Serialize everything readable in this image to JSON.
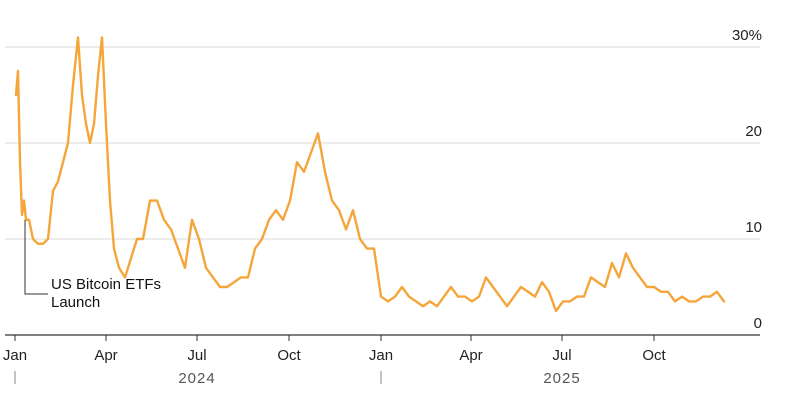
{
  "chart_data": {
    "type": "line",
    "title": "",
    "xlabel": "",
    "ylabel": "",
    "y_unit_label": "30%",
    "ylim": [
      0,
      30
    ],
    "yticks": [
      0,
      10,
      20,
      30
    ],
    "ytick_labels": [
      "0",
      "10",
      "20",
      "30%"
    ],
    "y_axis_position": "right",
    "grid": true,
    "xlim": [
      "2024-01-01",
      "2025-12-31"
    ],
    "xticks": [
      {
        "date": "2024-01-01",
        "label": "Jan"
      },
      {
        "date": "2024-04-01",
        "label": "Apr"
      },
      {
        "date": "2024-07-01",
        "label": "Jul"
      },
      {
        "date": "2024-10-01",
        "label": "Oct"
      },
      {
        "date": "2025-01-01",
        "label": "Jan"
      },
      {
        "date": "2025-04-01",
        "label": "Apr"
      },
      {
        "date": "2025-07-01",
        "label": "Jul"
      },
      {
        "date": "2025-10-01",
        "label": "Oct"
      }
    ],
    "year_labels": [
      {
        "label": "2024",
        "date": "2024-07-01"
      },
      {
        "label": "2025",
        "date": "2025-07-01"
      }
    ],
    "year_separators": [
      "2024-01-01",
      "2025-01-01"
    ],
    "line_color": "#f5a53a",
    "series": [
      {
        "x": [
          "2024-01-02",
          "2024-01-04",
          "2024-01-06",
          "2024-01-08",
          "2024-01-10",
          "2024-01-12",
          "2024-01-15",
          "2024-01-19",
          "2024-01-24",
          "2024-01-29",
          "2024-02-03",
          "2024-02-08",
          "2024-02-13",
          "2024-02-18",
          "2024-02-23",
          "2024-02-28",
          "2024-03-04",
          "2024-03-08",
          "2024-03-12",
          "2024-03-16",
          "2024-03-20",
          "2024-03-24",
          "2024-03-28",
          "2024-04-01",
          "2024-04-05",
          "2024-04-09",
          "2024-04-14",
          "2024-04-20",
          "2024-04-26",
          "2024-05-02",
          "2024-05-08",
          "2024-05-15",
          "2024-05-22",
          "2024-05-29",
          "2024-06-05",
          "2024-06-12",
          "2024-06-19",
          "2024-06-26",
          "2024-07-03",
          "2024-07-10",
          "2024-07-17",
          "2024-07-24",
          "2024-07-31",
          "2024-08-07",
          "2024-08-14",
          "2024-08-21",
          "2024-08-28",
          "2024-09-04",
          "2024-09-11",
          "2024-09-18",
          "2024-09-25",
          "2024-10-02",
          "2024-10-09",
          "2024-10-16",
          "2024-10-23",
          "2024-10-30",
          "2024-11-06",
          "2024-11-13",
          "2024-11-20",
          "2024-11-27",
          "2024-12-04",
          "2024-12-11",
          "2024-12-18",
          "2024-12-25",
          "2025-01-01",
          "2025-01-08",
          "2025-01-15",
          "2025-01-22",
          "2025-01-29",
          "2025-02-05",
          "2025-02-12",
          "2025-02-19",
          "2025-02-26",
          "2025-03-05",
          "2025-03-12",
          "2025-03-19",
          "2025-03-26",
          "2025-04-02",
          "2025-04-09",
          "2025-04-16",
          "2025-04-23",
          "2025-04-30",
          "2025-05-07",
          "2025-05-14",
          "2025-05-21",
          "2025-05-28",
          "2025-06-04",
          "2025-06-11",
          "2025-06-18",
          "2025-06-25",
          "2025-07-02",
          "2025-07-09",
          "2025-07-16",
          "2025-07-23",
          "2025-07-30",
          "2025-08-06",
          "2025-08-13",
          "2025-08-20",
          "2025-08-27",
          "2025-09-03",
          "2025-09-10",
          "2025-09-17",
          "2025-09-24",
          "2025-10-01",
          "2025-10-08",
          "2025-10-15",
          "2025-10-22",
          "2025-10-29",
          "2025-11-05",
          "2025-11-12",
          "2025-11-19",
          "2025-11-26",
          "2025-12-03",
          "2025-12-10"
        ],
        "values": [
          25,
          27.5,
          18,
          12.5,
          14,
          12,
          12,
          10,
          9.5,
          9.5,
          10,
          15,
          16,
          18,
          20,
          26,
          31,
          25,
          22,
          20,
          22,
          27,
          31,
          22,
          14,
          9,
          7,
          6,
          8,
          10,
          10,
          14,
          14,
          12,
          11,
          9,
          7,
          12,
          10,
          7,
          6,
          5,
          5,
          5.5,
          6,
          6,
          9,
          10,
          12,
          13,
          12,
          14,
          18,
          17,
          19,
          21,
          17,
          14,
          13,
          11,
          13,
          10,
          9,
          9,
          4,
          3.5,
          4,
          5,
          4,
          3.5,
          3,
          3.5,
          3,
          4,
          5,
          4,
          4,
          3.5,
          4,
          6,
          5,
          4,
          3,
          4,
          5,
          4.5,
          4,
          5.5,
          4.5,
          2.5,
          3.5,
          3.5,
          4,
          4,
          6,
          5.5,
          5,
          7.5,
          6,
          8.5,
          7,
          6,
          5,
          5,
          4.5,
          4.5,
          3.5,
          4,
          3.5,
          3.5,
          4,
          4,
          4.5,
          3.5
        ]
      }
    ],
    "annotations": [
      {
        "date": "2024-01-11",
        "value": 12.2,
        "lines": [
          "US Bitcoin ETFs",
          "Launch"
        ]
      }
    ]
  }
}
